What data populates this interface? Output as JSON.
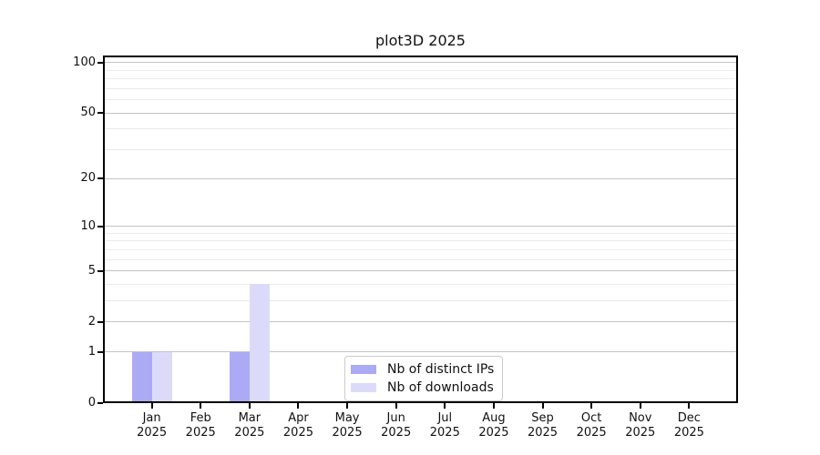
{
  "title": "plot3D 2025",
  "colors": {
    "bar_distinct_ips": "#aaaaf5",
    "bar_downloads": "#dbdbf9",
    "grid_major": "#c4c4c4",
    "grid_minor": "#ebebeb",
    "axis": "#000000",
    "legend_border": "#cccccc",
    "background": "#ffffff"
  },
  "chart_data": {
    "type": "bar",
    "title": "plot3D 2025",
    "xlabel": "",
    "ylabel": "",
    "grid": true,
    "categories": [
      "Jan",
      "Feb",
      "Mar",
      "Apr",
      "May",
      "Jun",
      "Jul",
      "Aug",
      "Sep",
      "Oct",
      "Nov",
      "Dec"
    ],
    "category_year": "2025",
    "x_tick_labels": [
      "Jan 2025",
      "Feb 2025",
      "Mar 2025",
      "Apr 2025",
      "May 2025",
      "Jun 2025",
      "Jul 2025",
      "Aug 2025",
      "Sep 2025",
      "Oct 2025",
      "Nov 2025",
      "Dec 2025"
    ],
    "series": [
      {
        "name": "Nb of distinct IPs",
        "color": "#aaaaf5",
        "values": [
          1,
          0,
          1,
          0,
          0,
          0,
          0,
          0,
          0,
          0,
          0,
          0
        ]
      },
      {
        "name": "Nb of downloads",
        "color": "#dbdbf9",
        "values": [
          1,
          0,
          4,
          0,
          0,
          0,
          0,
          0,
          0,
          0,
          0,
          0
        ]
      }
    ],
    "y_axis": {
      "scale": "log1p",
      "tick_values": [
        0,
        1,
        2,
        5,
        10,
        20,
        50,
        100
      ],
      "tick_labels": [
        "0",
        "1",
        "2",
        "5",
        "10",
        "20",
        "50",
        "100"
      ],
      "minor_gridlines": [
        3,
        4,
        6,
        7,
        8,
        9,
        30,
        40,
        60,
        70,
        80,
        90
      ],
      "min": 0,
      "max": 110
    },
    "legend": {
      "position": "lower-center-inside",
      "entries": [
        "Nb of distinct IPs",
        "Nb of downloads"
      ]
    }
  }
}
